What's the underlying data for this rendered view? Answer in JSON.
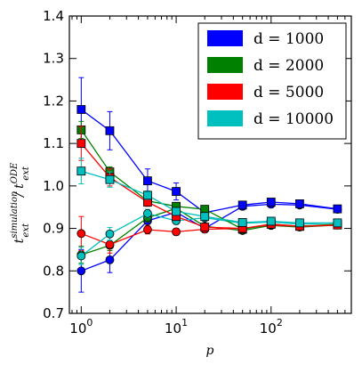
{
  "chart_data": {
    "type": "line",
    "xscale": "log",
    "xlim": [
      0.75,
      700
    ],
    "ylim": [
      0.7,
      1.4
    ],
    "xlabel": "p",
    "ylabel": "t_ext^simulation / t_ext^ODE",
    "x_ticks": [
      {
        "value": 1,
        "base": "10",
        "exp": "0"
      },
      {
        "value": 10,
        "base": "10",
        "exp": "1"
      },
      {
        "value": 100,
        "base": "10",
        "exp": "2"
      }
    ],
    "y_ticks": [
      "0.7",
      "0.8",
      "0.9",
      "1.0",
      "1.1",
      "1.2",
      "1.3",
      "1.4"
    ],
    "legend_position": "top-right",
    "grid": false,
    "series": [
      {
        "name": "d = 1000",
        "color": "#0000ff",
        "square": {
          "x": [
            1,
            2,
            5,
            10,
            20,
            50,
            100,
            200,
            500
          ],
          "y": [
            1.18,
            1.13,
            1.012,
            0.987,
            0.937,
            0.955,
            0.962,
            0.958,
            0.946
          ],
          "err": [
            0.075,
            0.045,
            0.028,
            0.02,
            0.01,
            0.008,
            0.007,
            0.006,
            0.006
          ]
        },
        "circle": {
          "x": [
            1,
            2,
            5,
            10,
            20,
            50,
            100,
            200,
            500
          ],
          "y": [
            0.8,
            0.826,
            0.918,
            0.938,
            0.9,
            0.952,
            0.957,
            0.955,
            0.945
          ],
          "err": [
            0.05,
            0.03,
            0.015,
            0.012,
            0.01,
            0.008,
            0.007,
            0.006,
            0.006
          ]
        }
      },
      {
        "name": "d = 2000",
        "color": "#008000",
        "square": {
          "x": [
            1,
            2,
            5,
            10,
            20,
            50,
            100,
            200,
            500
          ],
          "y": [
            1.132,
            1.033,
            0.965,
            0.952,
            0.945,
            0.898,
            0.91,
            0.905,
            0.91
          ],
          "err": [
            0.02,
            0.012,
            0.01,
            0.008,
            0.007,
            0.006,
            0.005,
            0.005,
            0.005
          ]
        },
        "circle": {
          "x": [
            1,
            2,
            5,
            10,
            20,
            50,
            100,
            200,
            500
          ],
          "y": [
            0.838,
            0.86,
            0.925,
            0.947,
            0.905,
            0.895,
            0.907,
            0.903,
            0.908
          ],
          "err": [
            0.02,
            0.012,
            0.01,
            0.008,
            0.007,
            0.006,
            0.005,
            0.005,
            0.005
          ]
        }
      },
      {
        "name": "d = 5000",
        "color": "#ff0000",
        "square": {
          "x": [
            1,
            2,
            5,
            10,
            20,
            50,
            100,
            200,
            500
          ],
          "y": [
            1.1,
            1.02,
            0.962,
            0.928,
            0.903,
            0.9,
            0.91,
            0.905,
            0.908
          ],
          "err": [
            0.04,
            0.02,
            0.01,
            0.008,
            0.006,
            0.005,
            0.005,
            0.005,
            0.005
          ]
        },
        "circle": {
          "x": [
            1,
            2,
            5,
            10,
            20,
            50,
            100,
            200,
            500
          ],
          "y": [
            0.888,
            0.862,
            0.897,
            0.892,
            0.898,
            0.9,
            0.908,
            0.905,
            0.908
          ],
          "err": [
            0.04,
            0.02,
            0.01,
            0.008,
            0.006,
            0.005,
            0.005,
            0.005,
            0.005
          ]
        }
      },
      {
        "name": "d = 10000",
        "color": "#00bfbf",
        "square": {
          "x": [
            1,
            2,
            5,
            10,
            20,
            50,
            100,
            200,
            500
          ],
          "y": [
            1.035,
            1.015,
            0.978,
            0.94,
            0.928,
            0.914,
            0.917,
            0.913,
            0.913
          ],
          "err": [
            0.03,
            0.018,
            0.01,
            0.008,
            0.007,
            0.005,
            0.005,
            0.005,
            0.005
          ]
        },
        "circle": {
          "x": [
            1,
            2,
            5,
            10,
            20,
            50,
            100,
            200,
            500
          ],
          "y": [
            0.835,
            0.887,
            0.935,
            0.918,
            0.925,
            0.912,
            0.915,
            0.91,
            0.913
          ],
          "err": [
            0.02,
            0.015,
            0.01,
            0.008,
            0.007,
            0.005,
            0.005,
            0.005,
            0.005
          ]
        }
      }
    ]
  }
}
